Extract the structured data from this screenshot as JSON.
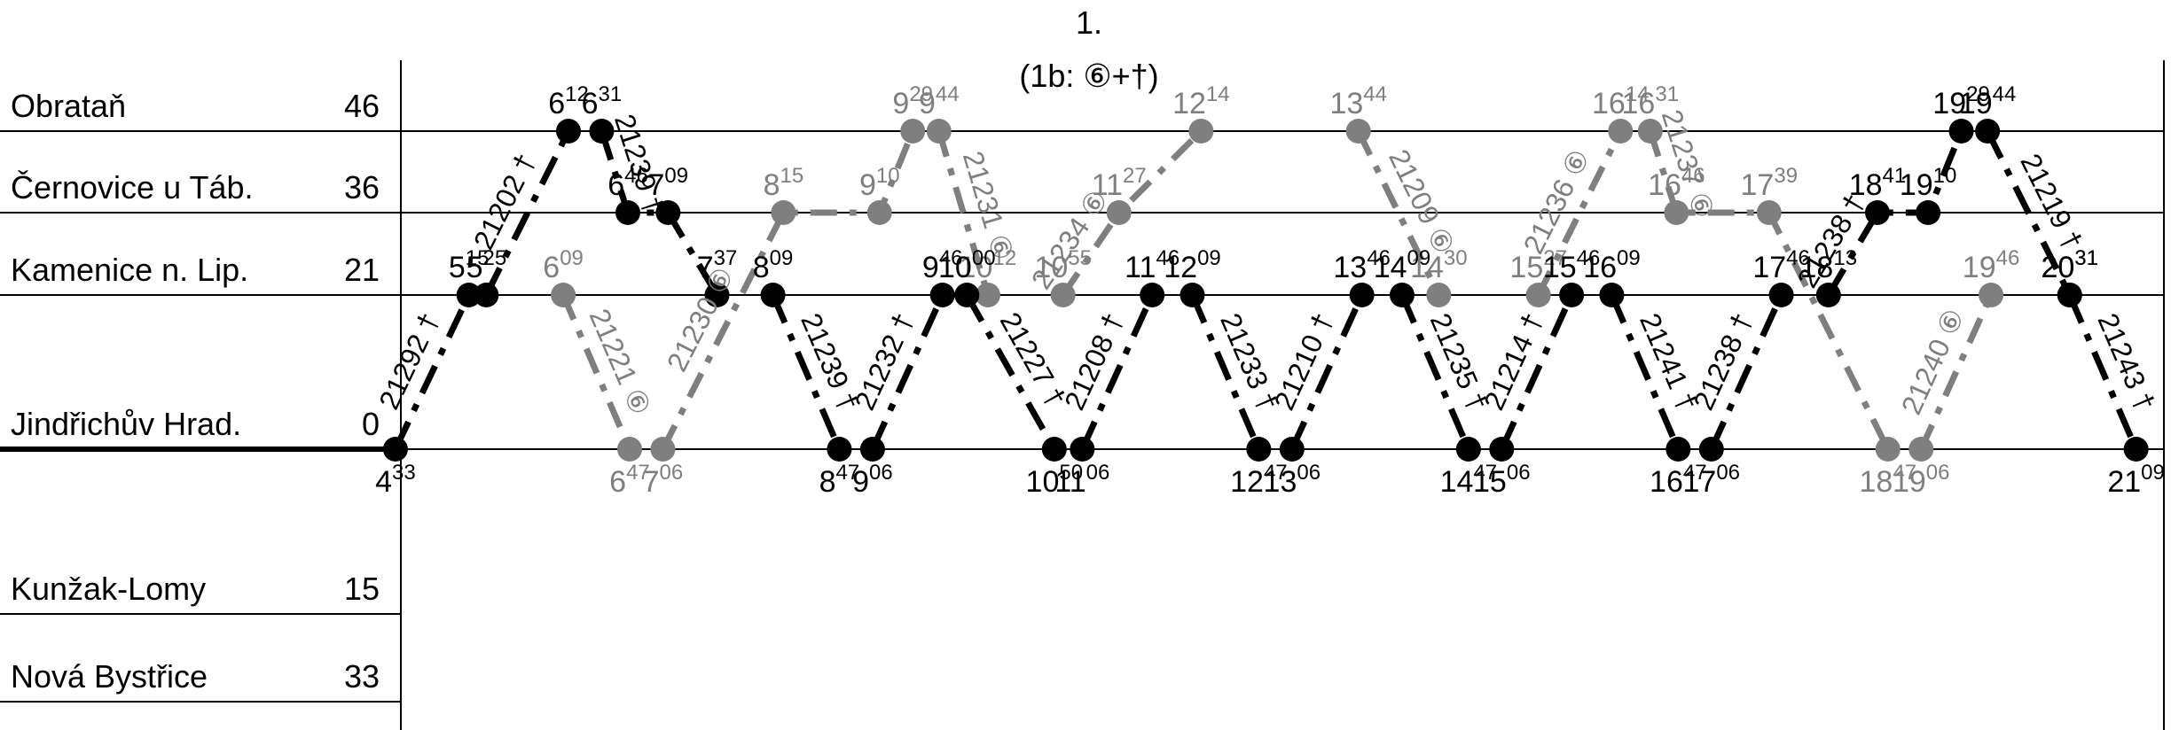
{
  "header": {
    "number": "1.",
    "note": "(1b: ⑥+†)"
  },
  "stations": [
    {
      "name": "Obrataň",
      "km": "46"
    },
    {
      "name": "Černovice u Táb.",
      "km": "36"
    },
    {
      "name": "Kamenice n. Lip.",
      "km": "21"
    },
    {
      "name": "Jindřichův Hrad.",
      "km": "0"
    },
    {
      "name": "Kunžak-Lomy",
      "km": "15"
    },
    {
      "name": "Nová Bystřice",
      "km": "33"
    }
  ],
  "trains": [
    {
      "number": "21292 †",
      "color": "#000000",
      "stops": [
        {
          "station": 3,
          "hh": "4",
          "mm": "33"
        },
        {
          "station": 2,
          "hh": "5",
          "mm": "15"
        }
      ]
    },
    {
      "number": "21202 †",
      "color": "#000000",
      "stops": [
        {
          "station": 2,
          "hh": "5",
          "mm": "25"
        },
        {
          "station": 0,
          "hh": "6",
          "mm": "12"
        }
      ]
    },
    {
      "number": "21239 †",
      "color": "#000000",
      "stops": [
        {
          "station": 0,
          "hh": "6",
          "mm": "31"
        },
        {
          "station": 1,
          "hh": "6",
          "mm": "46"
        },
        {
          "station": 1,
          "hh": "7",
          "mm": "09"
        },
        {
          "station": 2,
          "hh": "7",
          "mm": "37"
        }
      ]
    },
    {
      "number": "21221 ⑥",
      "color": "#7f7f7f",
      "stops": [
        {
          "station": 2,
          "hh": "6",
          "mm": "09"
        },
        {
          "station": 3,
          "hh": "6",
          "mm": "47"
        }
      ]
    },
    {
      "number": "21230 ⑥",
      "color": "#7f7f7f",
      "stops": [
        {
          "station": 3,
          "hh": "7",
          "mm": "06"
        },
        {
          "station": 1,
          "hh": "8",
          "mm": "15"
        },
        {
          "station": 1,
          "hh": "9",
          "mm": "10"
        },
        {
          "station": 0,
          "hh": "9",
          "mm": "29"
        }
      ]
    },
    {
      "number": "21239 †",
      "color": "#000000",
      "stops": [
        {
          "station": 2,
          "hh": "8",
          "mm": "09"
        },
        {
          "station": 3,
          "hh": "8",
          "mm": "47"
        }
      ]
    },
    {
      "number": "21232 †",
      "color": "#000000",
      "stops": [
        {
          "station": 3,
          "hh": "9",
          "mm": "06"
        },
        {
          "station": 2,
          "hh": "9",
          "mm": "46"
        }
      ]
    },
    {
      "number": "21231 ⑥",
      "color": "#7f7f7f",
      "stops": [
        {
          "station": 0,
          "hh": "9",
          "mm": "44"
        },
        {
          "station": 2,
          "hh": "10",
          "mm": "12"
        }
      ]
    },
    {
      "number": "21227 †",
      "color": "#000000",
      "stops": [
        {
          "station": 2,
          "hh": "10",
          "mm": "00"
        },
        {
          "station": 3,
          "hh": "10",
          "mm": "50"
        }
      ]
    },
    {
      "number": "21208 †",
      "color": "#000000",
      "stops": [
        {
          "station": 3,
          "hh": "11",
          "mm": "06"
        },
        {
          "station": 2,
          "hh": "11",
          "mm": "46"
        }
      ]
    },
    {
      "number": "21234 ⑥",
      "color": "#7f7f7f",
      "stops": [
        {
          "station": 2,
          "hh": "10",
          "mm": "55"
        },
        {
          "station": 1,
          "hh": "11",
          "mm": "27"
        },
        {
          "station": 0,
          "hh": "12",
          "mm": "14"
        }
      ]
    },
    {
      "number": "21233 †",
      "color": "#000000",
      "stops": [
        {
          "station": 2,
          "hh": "12",
          "mm": "09"
        },
        {
          "station": 3,
          "hh": "12",
          "mm": "47"
        }
      ]
    },
    {
      "number": "21209 ⑥",
      "color": "#7f7f7f",
      "stops": [
        {
          "station": 0,
          "hh": "13",
          "mm": "44"
        },
        {
          "station": 2,
          "hh": "14",
          "mm": "30"
        }
      ]
    },
    {
      "number": "21210 †",
      "color": "#000000",
      "stops": [
        {
          "station": 3,
          "hh": "13",
          "mm": "06"
        },
        {
          "station": 2,
          "hh": "13",
          "mm": "46"
        }
      ]
    },
    {
      "number": "21235 †",
      "color": "#000000",
      "stops": [
        {
          "station": 2,
          "hh": "14",
          "mm": "09"
        },
        {
          "station": 3,
          "hh": "14",
          "mm": "47"
        }
      ]
    },
    {
      "number": "21236 ⑥",
      "color": "#7f7f7f",
      "stops": [
        {
          "station": 2,
          "hh": "15",
          "mm": "27"
        },
        {
          "station": 0,
          "hh": "16",
          "mm": "14"
        }
      ]
    },
    {
      "number": "21214 †",
      "color": "#000000",
      "stops": [
        {
          "station": 3,
          "hh": "15",
          "mm": "06"
        },
        {
          "station": 2,
          "hh": "15",
          "mm": "46"
        }
      ]
    },
    {
      "number": "21241 †",
      "color": "#000000",
      "stops": [
        {
          "station": 2,
          "hh": "16",
          "mm": "09"
        },
        {
          "station": 3,
          "hh": "16",
          "mm": "47"
        }
      ]
    },
    {
      "number": "21237 ⑥",
      "color": "#7f7f7f",
      "stops": [
        {
          "station": 0,
          "hh": "16",
          "mm": "31"
        },
        {
          "station": 1,
          "hh": "16",
          "mm": "46"
        },
        {
          "station": 1,
          "hh": "17",
          "mm": "39"
        },
        {
          "station": 3,
          "hh": "18",
          "mm": "47"
        }
      ]
    },
    {
      "number": "21238 †",
      "color": "#000000",
      "stops": [
        {
          "station": 3,
          "hh": "17",
          "mm": "06"
        },
        {
          "station": 2,
          "hh": "17",
          "mm": "46"
        }
      ]
    },
    {
      "number": "21238 †",
      "color": "#000000",
      "stops": [
        {
          "station": 2,
          "hh": "18",
          "mm": "13"
        },
        {
          "station": 1,
          "hh": "18",
          "mm": "41"
        },
        {
          "station": 1,
          "hh": "19",
          "mm": "10"
        },
        {
          "station": 0,
          "hh": "19",
          "mm": "29"
        }
      ]
    },
    {
      "number": "21219 †",
      "color": "#000000",
      "stops": [
        {
          "station": 0,
          "hh": "19",
          "mm": "44"
        },
        {
          "station": 2,
          "hh": "20",
          "mm": "31"
        }
      ]
    },
    {
      "number": "21240 ⑥",
      "color": "#7f7f7f",
      "stops": [
        {
          "station": 3,
          "hh": "19",
          "mm": "06"
        },
        {
          "station": 2,
          "hh": "19",
          "mm": "46"
        }
      ]
    },
    {
      "number": "21243 †",
      "color": "#000000",
      "stops": [
        {
          "station": 2,
          "hh": "20",
          "mm": "31"
        },
        {
          "station": 3,
          "hh": "21",
          "mm": "09"
        }
      ]
    }
  ]
}
